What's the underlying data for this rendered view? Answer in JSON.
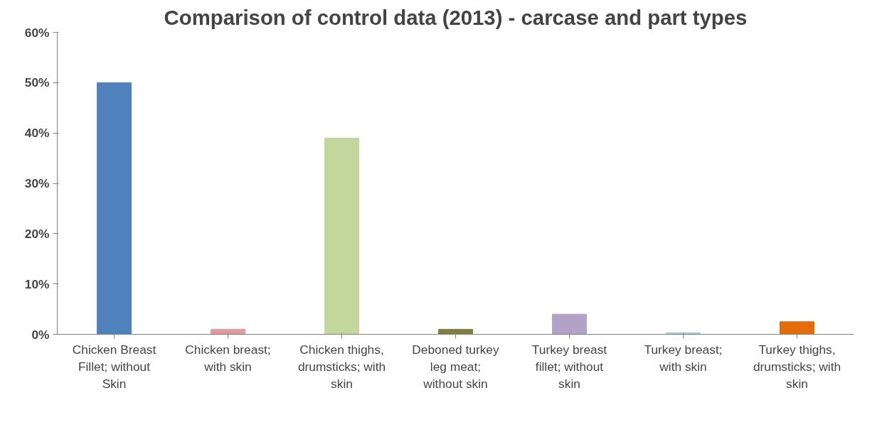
{
  "chart_data": {
    "type": "bar",
    "title": "Comparison of control data (2013) - carcase and part types",
    "categories": [
      "Chicken Breast Fillet; without Skin",
      "Chicken breast; with skin",
      "Chicken thighs, drumsticks; with skin",
      "Deboned turkey leg meat; without skin",
      "Turkey breast fillet; without skin",
      "Turkey breast; with skin",
      "Turkey thighs, drumsticks; with skin"
    ],
    "values": [
      50,
      1,
      39,
      1,
      4,
      0.3,
      2.5
    ],
    "colors": [
      "#4f81bd",
      "#e6999a",
      "#c3d69b",
      "#7f7f3f",
      "#b3a2c7",
      "#93cddd",
      "#e46c0a"
    ],
    "ylim": [
      0,
      60
    ],
    "yticks": [
      {
        "value": 0,
        "label": "0%"
      },
      {
        "value": 10,
        "label": "10%"
      },
      {
        "value": 20,
        "label": "20%"
      },
      {
        "value": 30,
        "label": "30%"
      },
      {
        "value": 40,
        "label": "40%"
      },
      {
        "value": 50,
        "label": "50%"
      },
      {
        "value": 60,
        "label": "60%"
      }
    ],
    "grid": false
  }
}
